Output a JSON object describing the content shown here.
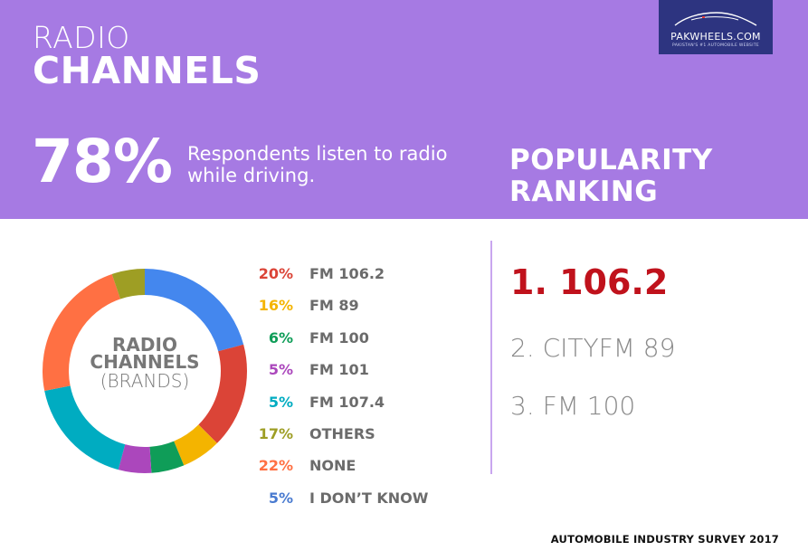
{
  "header": {
    "title_small": "RADIO",
    "title_big": "CHANNELS",
    "logo_name": "PAKWHEELS.COM",
    "logo_tagline": "PAKISTAN'S #1 AUTOMOBILE WEBSITE",
    "stat_value": "78%",
    "stat_text": "Respondents listen to radio while driving.",
    "popularity_title_line1": "POPULARITY",
    "popularity_title_line2": "RANKING"
  },
  "donut_center": {
    "line1": "RADIO",
    "line2": "CHANNELS",
    "line3": "(BRANDS)"
  },
  "ranking": [
    {
      "text": "1. 106.2",
      "color": "#c0121c"
    },
    {
      "text": "2. CITYFM 89",
      "color": "#8a8a8a"
    },
    {
      "text": "3. FM 100",
      "color": "#8a8a8a"
    }
  ],
  "footer": "AUTOMOBILE INDUSTRY SURVEY 2017",
  "colors": {
    "header_bg": "#a67ae3",
    "logo_bg": "#2d3480",
    "divider": "#c9a6ef"
  },
  "chart_data": {
    "type": "pie",
    "donut": true,
    "unit": "%",
    "slices": [
      {
        "label": "FM 106.2",
        "pct_label": "20%",
        "value": 20,
        "color": "#4487ee"
      },
      {
        "label": "FM 89",
        "pct_label": "16%",
        "value": 16,
        "color": "#db4437"
      },
      {
        "label": "FM 100",
        "pct_label": "6%",
        "value": 6,
        "color": "#f4b400"
      },
      {
        "label": "FM 101",
        "pct_label": "5%",
        "value": 5,
        "color": "#0f9d58"
      },
      {
        "label": "FM 107.4",
        "pct_label": "5%",
        "value": 5,
        "color": "#ab47bc"
      },
      {
        "label": "OTHERS",
        "pct_label": "17%",
        "value": 17,
        "color": "#00acc1"
      },
      {
        "label": "NONE",
        "pct_label": "22%",
        "value": 22,
        "color": "#ff7043"
      },
      {
        "label": "I DON'T KNOW",
        "pct_label": "5%",
        "value": 5,
        "color": "#9e9e24"
      }
    ],
    "legend": [
      {
        "pct": "20%",
        "name": "FM 106.2",
        "color": "#db4437"
      },
      {
        "pct": "16%",
        "name": "FM 89",
        "color": "#f4b400"
      },
      {
        "pct": "6%",
        "name": "FM 100",
        "color": "#0f9d58"
      },
      {
        "pct": "5%",
        "name": "FM 101",
        "color": "#ab47bc"
      },
      {
        "pct": "5%",
        "name": "FM 107.4",
        "color": "#00acc1"
      },
      {
        "pct": "17%",
        "name": "OTHERS",
        "color": "#9e9e24"
      },
      {
        "pct": "22%",
        "name": "NONE",
        "color": "#ff7043"
      },
      {
        "pct": "5%",
        "name": "I DON’T KNOW",
        "color": "#4a7bd0"
      }
    ]
  }
}
